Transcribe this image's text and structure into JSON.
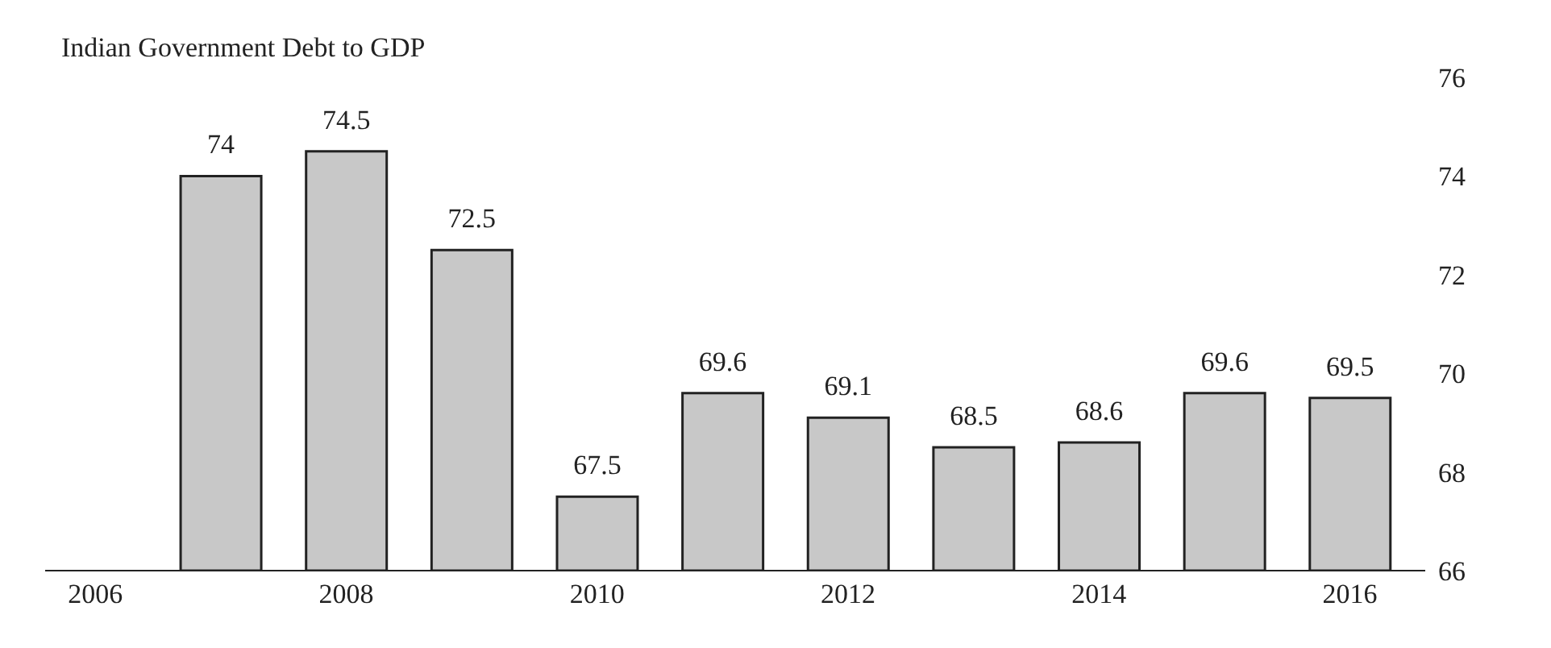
{
  "chart_data": {
    "type": "bar",
    "title": "Indian Government Debt to GDP",
    "x": [
      2007,
      2008,
      2009,
      2010,
      2011,
      2012,
      2013,
      2014,
      2015,
      2016
    ],
    "values": [
      74,
      74.5,
      72.5,
      67.5,
      69.6,
      69.1,
      68.5,
      68.6,
      69.6,
      69.5
    ],
    "color": "#c8c8c8",
    "xlim": [
      2005.6,
      2016.6
    ],
    "xticks": [
      2006,
      2008,
      2010,
      2012,
      2014,
      2016
    ],
    "ylim": [
      66,
      76
    ],
    "yticks": [
      66,
      68,
      70,
      72,
      74,
      76
    ],
    "data_labels": true,
    "grid": false
  }
}
